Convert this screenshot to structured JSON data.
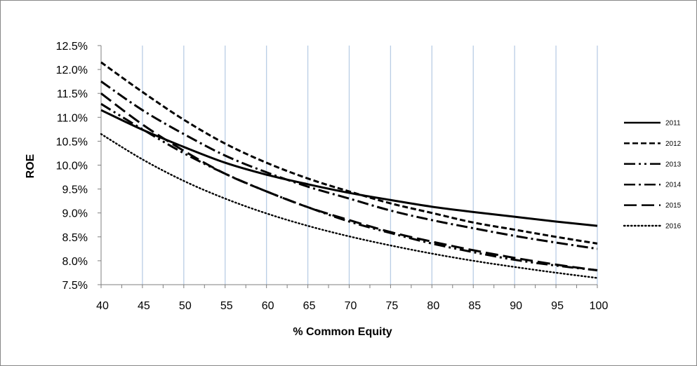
{
  "chart_data": {
    "type": "line",
    "title": "",
    "xlabel": "% Common Equity",
    "ylabel": "ROE",
    "xlim": [
      40,
      100
    ],
    "ylim": [
      0.075,
      0.125
    ],
    "x_ticks": [
      40,
      45,
      50,
      55,
      60,
      65,
      70,
      75,
      80,
      85,
      90,
      95,
      100
    ],
    "y_ticks": [
      "7.5%",
      "8.0%",
      "8.5%",
      "9.0%",
      "9.5%",
      "10.0%",
      "10.5%",
      "11.0%",
      "11.5%",
      "12.0%",
      "12.5%"
    ],
    "grid": "vertical",
    "legend_position": "right",
    "colors": {
      "line": "#000000",
      "grid": "#B9CDE5",
      "axis": "#7F7F7F"
    },
    "x": [
      40,
      45,
      50,
      55,
      60,
      65,
      70,
      75,
      80,
      85,
      90,
      95,
      100
    ],
    "series": [
      {
        "name": "2011",
        "style": "solid",
        "values": [
          0.1115,
          0.1074,
          0.1038,
          0.1005,
          0.098,
          0.096,
          0.0942,
          0.0927,
          0.0913,
          0.0902,
          0.0892,
          0.0882,
          0.0873
        ]
      },
      {
        "name": "2012",
        "style": "dashed",
        "values": [
          0.1215,
          0.1153,
          0.1095,
          0.1045,
          0.1005,
          0.0972,
          0.0945,
          0.092,
          0.09,
          0.088,
          0.0865,
          0.085,
          0.0836
        ]
      },
      {
        "name": "2013",
        "style": "dash-dot-dot",
        "values": [
          0.1128,
          0.1075,
          0.1025,
          0.0982,
          0.0945,
          0.0912,
          0.0882,
          0.0858,
          0.0836,
          0.0818,
          0.0802,
          0.079,
          0.078
        ]
      },
      {
        "name": "2014",
        "style": "dash-dot",
        "values": [
          0.1175,
          0.1115,
          0.1065,
          0.102,
          0.0985,
          0.0955,
          0.093,
          0.0905,
          0.0885,
          0.0868,
          0.0852,
          0.0838,
          0.0825
        ]
      },
      {
        "name": "2015",
        "style": "long-dash",
        "values": [
          0.115,
          0.1085,
          0.103,
          0.0982,
          0.0945,
          0.0912,
          0.0885,
          0.086,
          0.084,
          0.0822,
          0.0806,
          0.0792,
          0.078
        ]
      },
      {
        "name": "2016",
        "style": "dotted",
        "values": [
          0.1065,
          0.1012,
          0.0967,
          0.093,
          0.0899,
          0.0873,
          0.0851,
          0.0832,
          0.0815,
          0.08,
          0.0787,
          0.0775,
          0.0764
        ]
      }
    ]
  }
}
